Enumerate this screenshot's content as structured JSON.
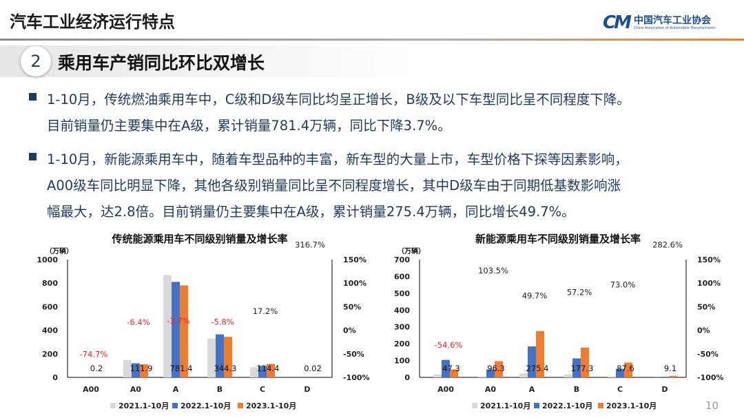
{
  "header": {
    "title": "汽车工业经济运行特点",
    "logo_cn": "中国汽车工业协会",
    "logo_en": "China Association of Automobile Manufacturers"
  },
  "section": {
    "number": "2",
    "title": "乘用车产销同比环比双增长"
  },
  "bullets": [
    {
      "lines": [
        "1-10月，传统燃油乘用车中，C级和D级车同比均呈正增长，B级及以下车型同比呈不同程度下降。",
        "目前销量仍主要集中在A级，累计销量781.4万辆，同比下降3.7%。"
      ]
    },
    {
      "lines": [
        "1-10月，新能源乘用车中，随着车型品种的丰富，新车型的大量上市，车型价格下探等因素影响，",
        "A00级车同比明显下降，其他各级别销量同比呈不同程度增长，其中D级车由于同期低基数影响涨",
        "幅最大，达2.8倍。目前销量仍主要集中在A级，累计销量275.4万辆，同比增长49.7%。"
      ]
    }
  ],
  "page_number": "10",
  "colors": {
    "2021": "#d9d9d9",
    "2022": "#4472c4",
    "2023": "#ed7d31",
    "negative": "#ff2020",
    "text": "#1f3a5f"
  },
  "chart_data": [
    {
      "type": "bar",
      "title": "传统能源乘用车不同级别销量及增长率",
      "unit": "（万辆）",
      "categories": [
        "A00",
        "A0",
        "A",
        "B",
        "C",
        "D"
      ],
      "ylim": [
        0,
        1000
      ],
      "yticks": [
        "1000",
        "800",
        "600",
        "400",
        "200",
        "0"
      ],
      "y2lim": [
        -100,
        150
      ],
      "y2ticks": [
        "150%",
        "100%",
        "50%",
        "0%",
        "-50%",
        "-100%"
      ],
      "series": [
        {
          "name": "2021.1-10月",
          "values": [
            0.8,
            148,
            870,
            330,
            85,
            0.01
          ]
        },
        {
          "name": "2022.1-10月",
          "values": [
            0.8,
            120,
            811,
            365,
            98,
            0.005
          ]
        },
        {
          "name": "2023.1-10月",
          "values": [
            0.2,
            111.9,
            781.4,
            344.3,
            114.4,
            0.02
          ]
        }
      ],
      "value_labels": [
        "0.2",
        "111.9",
        "781.4",
        "344.3",
        "114.4",
        "0.02"
      ],
      "growth": [
        -74.7,
        -6.4,
        -3.7,
        -5.8,
        17.2,
        316.7
      ],
      "growth_labels": [
        "-74.7%",
        "-6.4%",
        "-3.7%",
        "-5.8%",
        "17.2%",
        "316.7%"
      ],
      "legend": "bottom",
      "grid": false
    },
    {
      "type": "bar",
      "title": "新能源乘用车不同级别销量及增长率",
      "unit": "（万辆）",
      "categories": [
        "A00",
        "A0",
        "A",
        "B",
        "C",
        "D"
      ],
      "ylim": [
        0,
        700
      ],
      "yticks": [
        "700",
        "600",
        "500",
        "400",
        "300",
        "200",
        "100",
        "0"
      ],
      "y2lim": [
        -100,
        150
      ],
      "y2ticks": [
        "150%",
        "100%",
        "50%",
        "0%",
        "-50%",
        "-100%"
      ],
      "series": [
        {
          "name": "2021.1-10月",
          "values": [
            18,
            6,
            25,
            18,
            6,
            1
          ]
        },
        {
          "name": "2022.1-10月",
          "values": [
            104,
            47,
            184,
            113,
            51,
            2.4
          ]
        },
        {
          "name": "2023.1-10月",
          "values": [
            47.3,
            96.3,
            275.4,
            177.3,
            87.6,
            9.1
          ]
        }
      ],
      "value_labels": [
        "47.3",
        "96.3",
        "275.4",
        "177.3",
        "87.6",
        "9.1"
      ],
      "growth": [
        -54.6,
        103.5,
        49.7,
        57.2,
        73.0,
        282.6
      ],
      "growth_labels": [
        "-54.6%",
        "103.5%",
        "49.7%",
        "57.2%",
        "73.0%",
        "282.6%"
      ],
      "legend": "bottom",
      "grid": false
    }
  ]
}
